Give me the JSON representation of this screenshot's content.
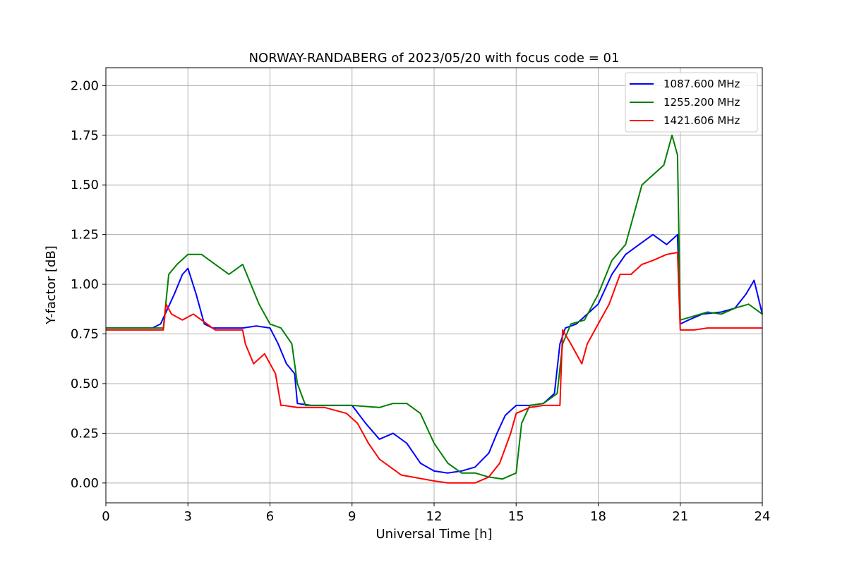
{
  "chart_data": {
    "type": "line",
    "title": "NORWAY-RANDABERG of 2023/05/20 with focus code = 01",
    "xlabel": "Universal Time [h]",
    "ylabel": "Y-factor [dB]",
    "xlim": [
      0,
      24
    ],
    "ylim": [
      -0.1,
      2.09
    ],
    "xticks": [
      0,
      3,
      6,
      9,
      12,
      15,
      18,
      21,
      24
    ],
    "xtick_labels": [
      "0",
      "3",
      "6",
      "9",
      "12",
      "15",
      "18",
      "21",
      "24"
    ],
    "yticks": [
      0.0,
      0.25,
      0.5,
      0.75,
      1.0,
      1.25,
      1.5,
      1.75,
      2.0
    ],
    "ytick_labels": [
      "0.00",
      "0.25",
      "0.50",
      "0.75",
      "1.00",
      "1.25",
      "1.50",
      "1.75",
      "2.00"
    ],
    "grid": true,
    "legend_position": "top-right",
    "series": [
      {
        "name": "1087.600 MHz",
        "color": "#0000ff",
        "x": [
          0,
          1.7,
          2.0,
          2.2,
          2.5,
          2.8,
          3.0,
          3.3,
          3.6,
          3.9,
          4.3,
          5.0,
          5.5,
          6.0,
          6.3,
          6.6,
          6.9,
          7.0,
          7.5,
          8.5,
          9.0,
          9.5,
          10.0,
          10.5,
          11.0,
          11.5,
          12.0,
          12.5,
          13.0,
          13.5,
          14.0,
          14.3,
          14.6,
          15.0,
          15.5,
          16.0,
          16.4,
          16.6,
          16.8,
          17.2,
          17.6,
          18.0,
          18.5,
          19.0,
          19.5,
          20.0,
          20.5,
          20.9,
          21.0,
          21.3,
          21.8,
          22.5,
          23.0,
          23.4,
          23.7,
          24.0
        ],
        "y": [
          0.78,
          0.78,
          0.8,
          0.86,
          0.95,
          1.05,
          1.08,
          0.95,
          0.8,
          0.78,
          0.78,
          0.78,
          0.79,
          0.78,
          0.7,
          0.6,
          0.55,
          0.4,
          0.39,
          0.39,
          0.39,
          0.3,
          0.22,
          0.25,
          0.2,
          0.1,
          0.06,
          0.05,
          0.06,
          0.08,
          0.15,
          0.25,
          0.34,
          0.39,
          0.39,
          0.4,
          0.45,
          0.7,
          0.78,
          0.8,
          0.85,
          0.9,
          1.05,
          1.15,
          1.2,
          1.25,
          1.2,
          1.25,
          0.8,
          0.82,
          0.85,
          0.86,
          0.88,
          0.95,
          1.02,
          0.85
        ]
      },
      {
        "name": "1255.200 MHz",
        "color": "#008000",
        "x": [
          0,
          2.1,
          2.3,
          2.6,
          3.0,
          3.5,
          4.0,
          4.5,
          5.0,
          5.3,
          5.6,
          6.0,
          6.4,
          6.8,
          7.0,
          7.3,
          8.0,
          9.0,
          10.0,
          10.5,
          11.0,
          11.5,
          12.0,
          12.5,
          13.0,
          13.5,
          14.0,
          14.5,
          15.0,
          15.2,
          15.5,
          16.0,
          16.5,
          16.7,
          17.0,
          17.5,
          18.0,
          18.5,
          19.0,
          19.3,
          19.6,
          20.0,
          20.4,
          20.7,
          20.9,
          21.0,
          21.5,
          22.0,
          22.5,
          23.0,
          23.5,
          24.0
        ],
        "y": [
          0.78,
          0.78,
          1.05,
          1.1,
          1.15,
          1.15,
          1.1,
          1.05,
          1.1,
          1.0,
          0.9,
          0.8,
          0.78,
          0.7,
          0.5,
          0.39,
          0.39,
          0.39,
          0.38,
          0.4,
          0.4,
          0.35,
          0.2,
          0.1,
          0.05,
          0.05,
          0.03,
          0.02,
          0.05,
          0.3,
          0.39,
          0.4,
          0.45,
          0.7,
          0.8,
          0.82,
          0.95,
          1.12,
          1.2,
          1.35,
          1.5,
          1.55,
          1.6,
          1.75,
          1.65,
          0.82,
          0.84,
          0.86,
          0.85,
          0.88,
          0.9,
          0.85
        ]
      },
      {
        "name": "1421.606 MHz",
        "color": "#ff0000",
        "x": [
          0,
          2.1,
          2.2,
          2.4,
          2.8,
          3.2,
          3.7,
          4.0,
          5.0,
          5.1,
          5.4,
          5.8,
          6.2,
          6.4,
          6.5,
          7.0,
          8.0,
          8.8,
          9.2,
          9.6,
          10.0,
          10.4,
          10.8,
          11.2,
          11.6,
          12.0,
          12.5,
          13.0,
          13.5,
          14.0,
          14.4,
          14.8,
          15.0,
          15.5,
          16.0,
          16.6,
          16.7,
          17.0,
          17.4,
          17.6,
          18.0,
          18.4,
          18.8,
          19.2,
          19.6,
          20.0,
          20.5,
          20.9,
          21.0,
          21.5,
          22.0,
          23.0,
          24.0
        ],
        "y": [
          0.77,
          0.77,
          0.9,
          0.85,
          0.82,
          0.85,
          0.8,
          0.77,
          0.77,
          0.7,
          0.6,
          0.65,
          0.55,
          0.39,
          0.39,
          0.38,
          0.38,
          0.35,
          0.3,
          0.2,
          0.12,
          0.08,
          0.04,
          0.03,
          0.02,
          0.01,
          0.0,
          0.0,
          0.0,
          0.03,
          0.1,
          0.25,
          0.35,
          0.38,
          0.39,
          0.39,
          0.77,
          0.7,
          0.6,
          0.7,
          0.8,
          0.9,
          1.05,
          1.05,
          1.1,
          1.12,
          1.15,
          1.16,
          0.77,
          0.77,
          0.78,
          0.78,
          0.78
        ]
      }
    ]
  }
}
